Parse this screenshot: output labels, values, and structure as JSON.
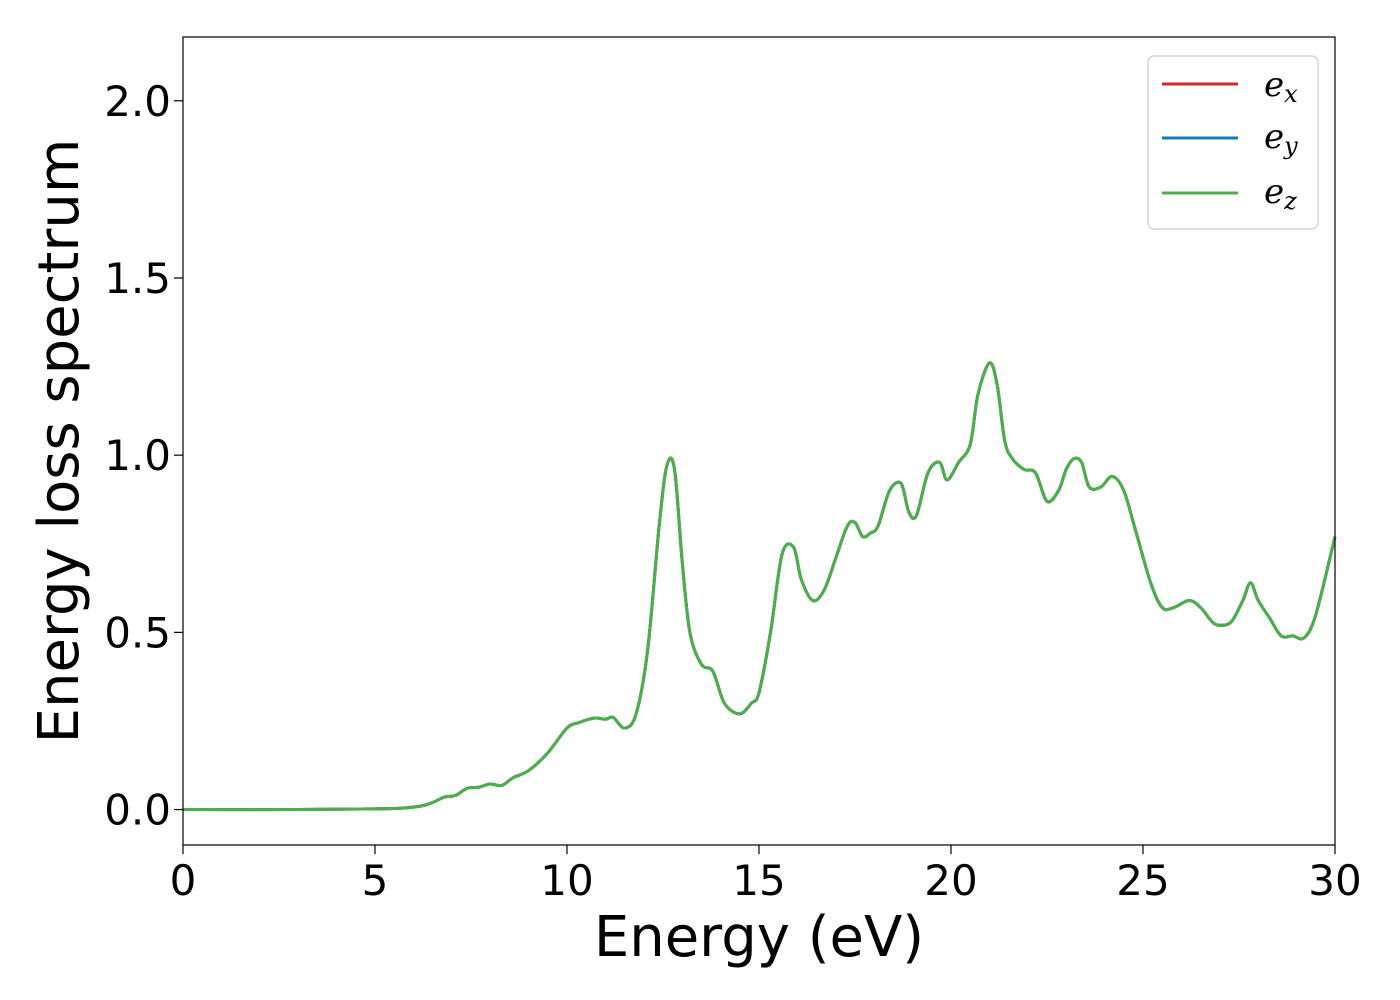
{
  "chart_data": {
    "type": "line",
    "xlabel": "Energy (eV)",
    "ylabel": "Energy loss spectrum",
    "xlim": [
      0,
      30
    ],
    "ylim": [
      -0.1,
      2.18
    ],
    "xticks": [
      0,
      5,
      10,
      15,
      20,
      25,
      30
    ],
    "yticks": [
      0.0,
      0.5,
      1.0,
      1.5,
      2.0
    ],
    "xtick_labels": [
      "0",
      "5",
      "10",
      "15",
      "20",
      "25",
      "30"
    ],
    "ytick_labels": [
      "0.0",
      "0.5",
      "1.0",
      "1.5",
      "2.0"
    ],
    "grid": false,
    "legend_position": "top-right",
    "colors": {
      "e_x": "#d62728",
      "e_y": "#1f77b4",
      "e_z": "#4daf4a"
    },
    "series": [
      {
        "name": "e_x",
        "label_base": "e",
        "label_sub": "x",
        "color": "#d62728"
      },
      {
        "name": "e_y",
        "label_base": "e",
        "label_sub": "y",
        "color": "#1f77b4"
      },
      {
        "name": "e_z",
        "label_base": "e",
        "label_sub": "z",
        "color": "#4daf4a"
      }
    ],
    "x": [
      0,
      3,
      5,
      5.7,
      6.2,
      6.5,
      6.8,
      7.1,
      7.4,
      7.7,
      8.0,
      8.3,
      8.6,
      9.0,
      9.5,
      10.0,
      10.3,
      10.7,
      11.0,
      11.2,
      11.5,
      11.8,
      12.1,
      12.4,
      12.6,
      12.8,
      13.0,
      13.2,
      13.5,
      13.8,
      14.1,
      14.5,
      14.8,
      15.0,
      15.3,
      15.6,
      15.9,
      16.1,
      16.4,
      16.7,
      17.0,
      17.3,
      17.5,
      17.7,
      17.9,
      18.1,
      18.4,
      18.7,
      18.9,
      19.1,
      19.4,
      19.7,
      19.9,
      20.2,
      20.5,
      20.7,
      21.0,
      21.2,
      21.4,
      21.6,
      21.9,
      22.2,
      22.5,
      22.8,
      23.0,
      23.2,
      23.4,
      23.6,
      23.9,
      24.2,
      24.5,
      24.8,
      25.2,
      25.5,
      25.8,
      26.2,
      26.5,
      26.8,
      27.0,
      27.3,
      27.6,
      27.8,
      28.0,
      28.3,
      28.6,
      28.9,
      29.2,
      29.5,
      30.0
    ],
    "values": [
      0.0,
      0.0,
      0.002,
      0.004,
      0.01,
      0.02,
      0.035,
      0.04,
      0.06,
      0.063,
      0.072,
      0.068,
      0.09,
      0.11,
      0.16,
      0.23,
      0.245,
      0.258,
      0.255,
      0.26,
      0.23,
      0.27,
      0.45,
      0.8,
      0.97,
      0.96,
      0.7,
      0.5,
      0.41,
      0.39,
      0.3,
      0.27,
      0.3,
      0.33,
      0.5,
      0.72,
      0.74,
      0.65,
      0.59,
      0.62,
      0.71,
      0.8,
      0.81,
      0.77,
      0.78,
      0.8,
      0.9,
      0.92,
      0.84,
      0.83,
      0.95,
      0.98,
      0.93,
      0.98,
      1.03,
      1.17,
      1.26,
      1.2,
      1.04,
      0.99,
      0.96,
      0.95,
      0.87,
      0.9,
      0.96,
      0.99,
      0.98,
      0.91,
      0.91,
      0.94,
      0.9,
      0.79,
      0.64,
      0.57,
      0.57,
      0.59,
      0.57,
      0.53,
      0.52,
      0.53,
      0.59,
      0.64,
      0.59,
      0.54,
      0.49,
      0.49,
      0.485,
      0.55,
      0.77
    ]
  }
}
